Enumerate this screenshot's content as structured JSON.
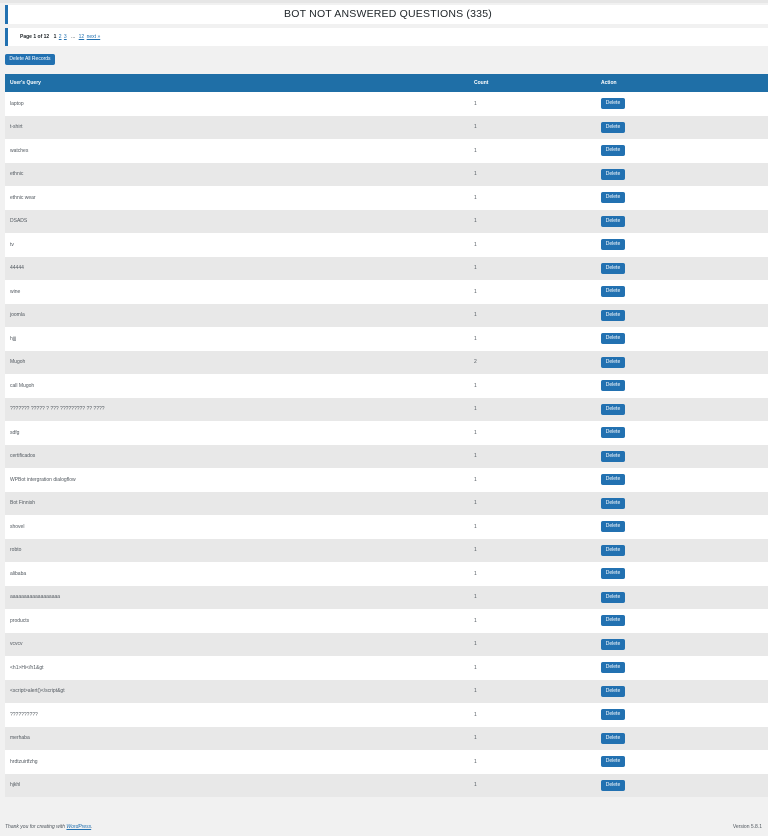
{
  "header": {
    "title": "BOT NOT ANSWERED QUESTIONS (335)"
  },
  "pagination": {
    "current_label": "Page 1 of 12",
    "pages": [
      "1",
      "2",
      "3"
    ],
    "dots": "...",
    "last": "12",
    "next": "next »"
  },
  "toolbar": {
    "delete_all_label": "Delete All Records"
  },
  "table": {
    "columns": [
      "User's Query",
      "Count",
      "Action"
    ],
    "delete_label": "Delete",
    "rows": [
      {
        "query": "laptop",
        "count": "1"
      },
      {
        "query": "t-shirt",
        "count": "1"
      },
      {
        "query": "watches",
        "count": "1"
      },
      {
        "query": "ethnic",
        "count": "1"
      },
      {
        "query": "ethnic wear",
        "count": "1"
      },
      {
        "query": "DSADS",
        "count": "1"
      },
      {
        "query": "tv",
        "count": "1"
      },
      {
        "query": "44444",
        "count": "1"
      },
      {
        "query": "wine",
        "count": "1"
      },
      {
        "query": "joomla",
        "count": "1"
      },
      {
        "query": "hjjj",
        "count": "1"
      },
      {
        "query": "Mugoh",
        "count": "2"
      },
      {
        "query": "call Mugoh",
        "count": "1"
      },
      {
        "query": "??????? ????? ? ??? ????????? ?? ????",
        "count": "1"
      },
      {
        "query": "sdfg",
        "count": "1"
      },
      {
        "query": "certificados",
        "count": "1"
      },
      {
        "query": "WPBot intergration dialogflow",
        "count": "1"
      },
      {
        "query": "Bot Finnish",
        "count": "1"
      },
      {
        "query": "shovel",
        "count": "1"
      },
      {
        "query": "robto",
        "count": "1"
      },
      {
        "query": "alibaba",
        "count": "1"
      },
      {
        "query": "aaaaaaaaaaaaaaaaaa",
        "count": "1"
      },
      {
        "query": "products",
        "count": "1"
      },
      {
        "query": "vcvcv",
        "count": "1"
      },
      {
        "query": "<h1>Hi</h1&gt",
        "count": "1"
      },
      {
        "query": "<script>alert()</script&gt",
        "count": "1"
      },
      {
        "query": "??????????",
        "count": "1"
      },
      {
        "query": "merhaba",
        "count": "1"
      },
      {
        "query": "hrdtzuirtfzhg",
        "count": "1"
      },
      {
        "query": "hjkhl",
        "count": "1"
      }
    ]
  },
  "footer": {
    "thanks_prefix": "Thank you for creating with ",
    "wp_link": "WordPress",
    "thanks_suffix": ".",
    "version": "Version 5.8.1"
  },
  "colors": {
    "accent": "#2271b1",
    "header_bg": "#1f6fa7",
    "row_alt": "#e8e8e8"
  }
}
